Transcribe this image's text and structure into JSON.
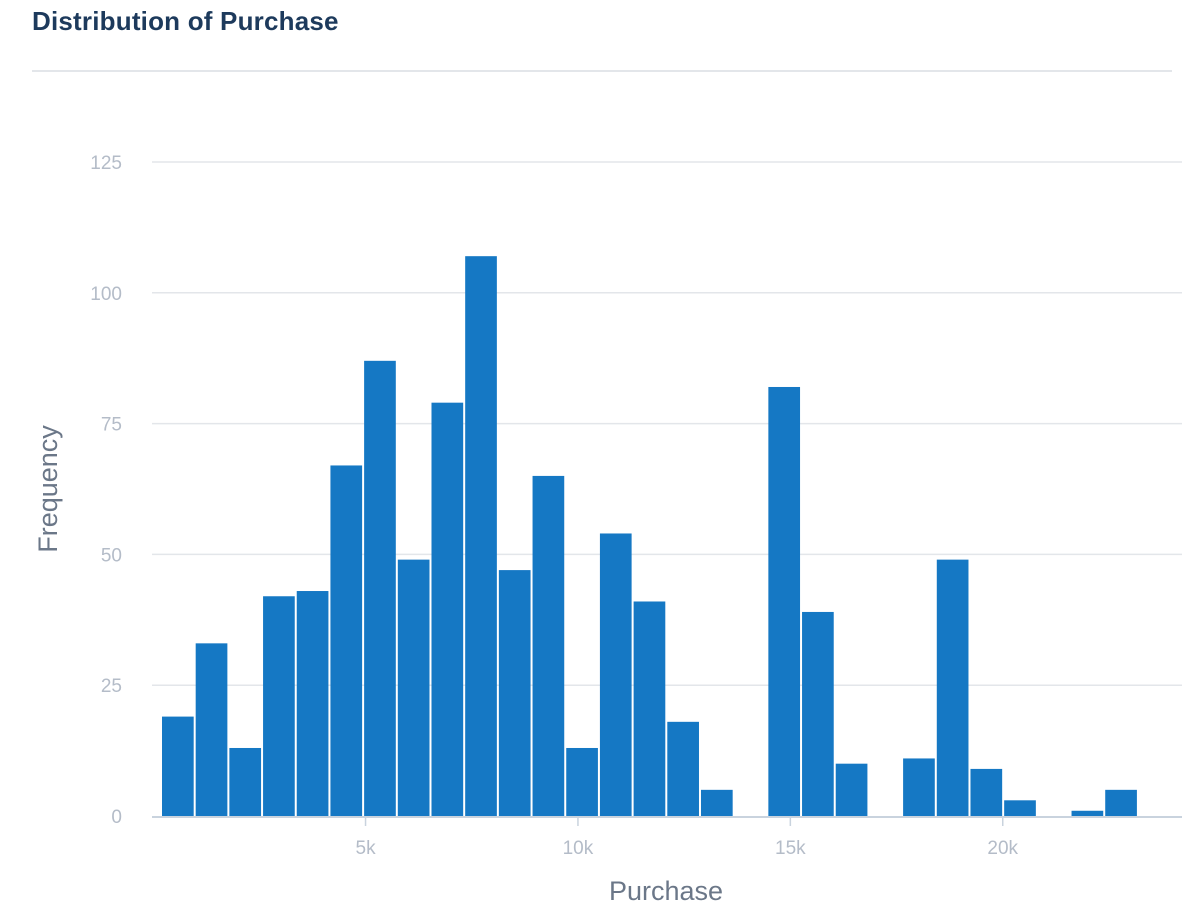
{
  "header": {
    "title": "Distribution of Purchase"
  },
  "colors": {
    "bar": "#1578c4",
    "grid": "#e3e6ea",
    "axis_line": "#c9d3de",
    "tick_text": "#b4bcc8",
    "axis_title": "#6b7788",
    "title": "#1d3a5c"
  },
  "chart_data": {
    "type": "bar",
    "title": "Distribution of Purchase",
    "xlabel": "Purchase",
    "ylabel": "Frequency",
    "xlim": [
      185,
      23961
    ],
    "ylim": [
      0,
      125
    ],
    "bin_width": 793,
    "grid": "horizontal",
    "x_ticks": [
      {
        "value": 5000,
        "label": "5k"
      },
      {
        "value": 10000,
        "label": "10k"
      },
      {
        "value": 15000,
        "label": "15k"
      },
      {
        "value": 20000,
        "label": "20k"
      }
    ],
    "y_ticks": [
      {
        "value": 0,
        "label": "0"
      },
      {
        "value": 25,
        "label": "25"
      },
      {
        "value": 50,
        "label": "50"
      },
      {
        "value": 75,
        "label": "75"
      },
      {
        "value": 100,
        "label": "100"
      },
      {
        "value": 125,
        "label": "125"
      }
    ],
    "bins": [
      {
        "x0": 185,
        "x1": 978,
        "count": 19
      },
      {
        "x0": 978,
        "x1": 1771,
        "count": 33
      },
      {
        "x0": 1771,
        "x1": 2564,
        "count": 13
      },
      {
        "x0": 2564,
        "x1": 3357,
        "count": 42
      },
      {
        "x0": 3357,
        "x1": 4150,
        "count": 43
      },
      {
        "x0": 4150,
        "x1": 4943,
        "count": 67
      },
      {
        "x0": 4943,
        "x1": 5736,
        "count": 87
      },
      {
        "x0": 5736,
        "x1": 6529,
        "count": 49
      },
      {
        "x0": 6529,
        "x1": 7322,
        "count": 79
      },
      {
        "x0": 7322,
        "x1": 8115,
        "count": 107
      },
      {
        "x0": 8115,
        "x1": 8908,
        "count": 47
      },
      {
        "x0": 8908,
        "x1": 9701,
        "count": 65
      },
      {
        "x0": 9701,
        "x1": 10494,
        "count": 13
      },
      {
        "x0": 10494,
        "x1": 11287,
        "count": 54
      },
      {
        "x0": 11287,
        "x1": 12080,
        "count": 41
      },
      {
        "x0": 12080,
        "x1": 12873,
        "count": 18
      },
      {
        "x0": 12873,
        "x1": 13666,
        "count": 5
      },
      {
        "x0": 13666,
        "x1": 14459,
        "count": 0
      },
      {
        "x0": 14459,
        "x1": 15252,
        "count": 82
      },
      {
        "x0": 15252,
        "x1": 16045,
        "count": 39
      },
      {
        "x0": 16045,
        "x1": 16838,
        "count": 10
      },
      {
        "x0": 16838,
        "x1": 17631,
        "count": 0
      },
      {
        "x0": 17631,
        "x1": 18424,
        "count": 11
      },
      {
        "x0": 18424,
        "x1": 19217,
        "count": 49
      },
      {
        "x0": 19217,
        "x1": 20010,
        "count": 9
      },
      {
        "x0": 20010,
        "x1": 20803,
        "count": 3
      },
      {
        "x0": 20803,
        "x1": 21596,
        "count": 0
      },
      {
        "x0": 21596,
        "x1": 22389,
        "count": 1
      },
      {
        "x0": 22389,
        "x1": 23182,
        "count": 5
      }
    ]
  }
}
